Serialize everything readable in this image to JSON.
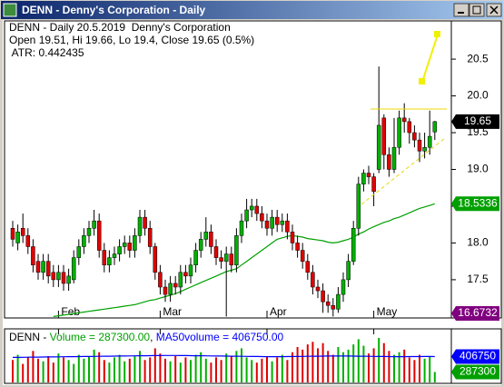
{
  "window_title": "DENN - Denny's Corporation - Daily",
  "chart_data": {
    "type": "candlestick",
    "annotations": [
      "DENN - Daily 20.5.2019  Denny's Corporation",
      "Open 19.51, Hi 19.66, Lo 19.4, Close 19.65 (0.5%)",
      " ATR: 0.442435"
    ],
    "categories": [
      null,
      null,
      null,
      null,
      null,
      null,
      null,
      null,
      null,
      "Feb",
      null,
      null,
      null,
      null,
      null,
      null,
      null,
      null,
      null,
      null,
      null,
      null,
      null,
      null,
      null,
      null,
      null,
      null,
      null,
      "Mar",
      null,
      null,
      null,
      null,
      null,
      null,
      null,
      null,
      null,
      null,
      null,
      null,
      null,
      null,
      null,
      null,
      null,
      null,
      null,
      null,
      "Apr",
      null,
      null,
      null,
      null,
      null,
      null,
      null,
      null,
      null,
      null,
      null,
      null,
      null,
      null,
      null,
      null,
      null,
      null,
      null,
      null,
      "May",
      null,
      null,
      null,
      null,
      null,
      null,
      null,
      null,
      null,
      null,
      null,
      null
    ],
    "open": [
      18.2,
      18.0,
      18.2,
      18.1,
      17.95,
      17.75,
      17.6,
      17.75,
      17.6,
      17.5,
      17.6,
      17.45,
      17.5,
      17.8,
      17.95,
      18.1,
      18.2,
      18.3,
      17.9,
      17.7,
      17.8,
      17.85,
      17.95,
      18.0,
      17.9,
      18.1,
      18.35,
      18.2,
      17.95,
      17.6,
      17.4,
      17.3,
      17.45,
      17.4,
      17.6,
      17.55,
      17.7,
      17.9,
      18.05,
      18.15,
      17.95,
      17.8,
      17.75,
      17.85,
      17.7,
      18.1,
      18.3,
      18.45,
      18.5,
      18.4,
      18.3,
      18.2,
      18.35,
      18.25,
      18.3,
      18.15,
      18.0,
      17.9,
      17.75,
      17.6,
      17.4,
      17.35,
      17.2,
      17.15,
      17.1,
      17.3,
      17.5,
      17.75,
      18.2,
      18.8,
      18.95,
      18.9,
      19.0,
      19.7,
      19.2,
      19.0,
      19.3,
      19.7,
      19.65,
      19.5,
      19.4,
      19.25,
      19.3,
      19.51
    ],
    "high": [
      18.3,
      18.25,
      18.4,
      18.2,
      18.05,
      17.85,
      17.85,
      17.85,
      17.7,
      17.7,
      17.7,
      17.65,
      17.9,
      18.05,
      18.2,
      18.3,
      18.45,
      18.4,
      18.0,
      17.9,
      17.95,
      18.05,
      18.1,
      18.1,
      18.2,
      18.45,
      18.45,
      18.3,
      18.0,
      17.7,
      17.5,
      17.55,
      17.55,
      17.7,
      17.7,
      17.8,
      18.0,
      18.15,
      18.35,
      18.25,
      18.05,
      17.9,
      17.95,
      17.95,
      18.2,
      18.4,
      18.6,
      18.6,
      18.6,
      18.5,
      18.4,
      18.45,
      18.45,
      18.4,
      18.4,
      18.25,
      18.1,
      18.0,
      17.85,
      17.7,
      17.5,
      17.45,
      17.3,
      17.25,
      17.4,
      17.6,
      17.85,
      18.3,
      18.9,
      19.0,
      19.05,
      18.95,
      20.4,
      19.75,
      19.3,
      19.7,
      19.8,
      19.9,
      19.7,
      19.6,
      19.5,
      19.5,
      19.8,
      19.66
    ],
    "low": [
      17.95,
      17.9,
      18.0,
      17.85,
      17.6,
      17.5,
      17.5,
      17.45,
      17.4,
      17.4,
      17.35,
      17.35,
      17.45,
      17.7,
      17.85,
      18.0,
      18.1,
      17.8,
      17.6,
      17.6,
      17.7,
      17.75,
      17.85,
      17.8,
      17.8,
      18.0,
      18.1,
      17.85,
      17.5,
      17.3,
      17.2,
      17.2,
      17.3,
      17.3,
      17.45,
      17.45,
      17.6,
      17.8,
      17.95,
      17.85,
      17.7,
      17.65,
      17.0,
      17.6,
      17.6,
      18.0,
      18.2,
      18.35,
      18.3,
      18.2,
      18.1,
      18.1,
      18.15,
      18.15,
      18.05,
      17.9,
      17.8,
      17.65,
      17.5,
      17.3,
      17.25,
      17.05,
      17.05,
      17.0,
      17.05,
      17.2,
      17.4,
      17.7,
      18.1,
      18.7,
      18.8,
      18.5,
      18.95,
      19.0,
      18.9,
      18.95,
      19.2,
      19.5,
      19.35,
      19.3,
      19.1,
      19.15,
      19.2,
      19.4
    ],
    "close": [
      18.05,
      18.15,
      18.1,
      17.95,
      17.7,
      17.6,
      17.75,
      17.55,
      17.5,
      17.6,
      17.45,
      17.55,
      17.8,
      17.95,
      18.1,
      18.2,
      18.3,
      17.9,
      17.7,
      17.8,
      17.85,
      17.95,
      18.0,
      17.9,
      18.1,
      18.35,
      18.2,
      17.95,
      17.6,
      17.4,
      17.3,
      17.45,
      17.4,
      17.6,
      17.55,
      17.7,
      17.9,
      18.05,
      18.15,
      17.95,
      17.8,
      17.75,
      17.85,
      17.7,
      18.1,
      18.3,
      18.45,
      18.5,
      18.4,
      18.3,
      18.2,
      18.35,
      18.25,
      18.3,
      18.15,
      18.0,
      17.9,
      17.75,
      17.6,
      17.4,
      17.35,
      17.2,
      17.15,
      17.1,
      17.3,
      17.5,
      17.75,
      18.2,
      18.8,
      18.95,
      18.9,
      18.7,
      19.6,
      19.2,
      19.0,
      19.3,
      19.7,
      19.65,
      19.5,
      19.4,
      19.25,
      19.3,
      19.45,
      19.65
    ],
    "up_color": "#00b000",
    "down_color": "#e00000",
    "ma": {
      "color": "#00a000",
      "values": [
        null,
        null,
        null,
        null,
        null,
        null,
        null,
        null,
        17.0,
        17.01,
        17.02,
        17.03,
        17.04,
        17.05,
        17.06,
        17.07,
        17.08,
        17.09,
        17.1,
        17.11,
        17.12,
        17.13,
        17.14,
        17.15,
        17.16,
        17.18,
        17.2,
        17.22,
        17.23,
        17.25,
        17.27,
        17.29,
        17.31,
        17.34,
        17.37,
        17.4,
        17.43,
        17.46,
        17.49,
        17.52,
        17.55,
        17.58,
        17.61,
        17.63,
        17.65,
        17.7,
        17.75,
        17.8,
        17.85,
        17.9,
        17.95,
        18.0,
        18.05,
        18.07,
        18.09,
        18.1,
        18.09,
        18.08,
        18.06,
        18.05,
        18.04,
        18.03,
        18.01,
        18.0,
        18.01,
        18.03,
        18.05,
        18.08,
        18.12,
        18.15,
        18.19,
        18.22,
        18.25,
        18.28,
        18.3,
        18.33,
        18.35,
        18.38,
        18.41,
        18.44,
        18.47,
        18.49,
        18.51,
        18.5336
      ]
    },
    "ylim": [
      16.98,
      21.02
    ],
    "yticks": [
      17.5,
      {
        "value": 18,
        "label": "18.0"
      },
      18.5,
      {
        "value": 19,
        "label": "19.0"
      },
      19.5,
      {
        "value": 20,
        "label": "20.0"
      },
      20.5
    ],
    "price_labels": [
      {
        "value": 19.65,
        "color": "#000000"
      },
      {
        "value": 18.5336,
        "color": "#00a000"
      },
      {
        "value": 16.6732,
        "color": "#800080"
      }
    ],
    "volume_title": [
      "DENN - ",
      "Volume = 287300.00",
      ", ",
      "MA50volume = 406750.00"
    ],
    "volume": [
      380000,
      420000,
      350000,
      400000,
      450000,
      390000,
      370000,
      410000,
      360000,
      430000,
      400000,
      380000,
      350000,
      420000,
      390000,
      410000,
      460000,
      440000,
      380000,
      360000,
      400000,
      420000,
      370000,
      390000,
      410000,
      450000,
      380000,
      400000,
      470000,
      430000,
      390000,
      370000,
      410000,
      360000,
      400000,
      380000,
      420000,
      440000,
      390000,
      360000,
      400000,
      380000,
      430000,
      410000,
      450000,
      470000,
      400000,
      380000,
      360000,
      390000,
      410000,
      370000,
      400000,
      420000,
      380000,
      440000,
      480000,
      460000,
      500000,
      520000,
      470000,
      510000,
      450000,
      420000,
      480000,
      440000,
      460000,
      500000,
      540000,
      490000,
      430000,
      470000,
      550000,
      510000,
      450000,
      420000,
      440000,
      460000,
      400000,
      380000,
      420000,
      390000,
      410000,
      287300
    ],
    "volume_ma": {
      "color": "#0000ff",
      "values": [
        400000,
        400500,
        401000,
        401500,
        402000,
        402500,
        403000,
        403500,
        404000,
        404500,
        405000,
        405500,
        406000,
        406500,
        407000,
        407500,
        408000,
        408500,
        409000,
        409500,
        410000,
        410500,
        411000,
        411500,
        412000,
        412500,
        413000,
        413500,
        414000,
        414500,
        415000,
        415000,
        415000,
        414500,
        414000,
        413500,
        413000,
        412500,
        412000,
        411500,
        411000,
        410500,
        410000,
        409500,
        409000,
        408500,
        408000,
        407500,
        407000,
        406500,
        406000,
        406000,
        406000,
        406000,
        406500,
        407000,
        407500,
        408000,
        408500,
        409000,
        409500,
        410000,
        410500,
        411000,
        411000,
        411000,
        410500,
        410000,
        409500,
        409000,
        408500,
        408000,
        407500,
        407000,
        406500,
        406000,
        406000,
        406000,
        406250,
        406500,
        406750,
        407000,
        407000,
        406750
      ]
    },
    "volume_ylim": [
      200000,
      620000
    ],
    "volume_labels": [
      {
        "value": 406750,
        "color": "#0000ff"
      },
      {
        "value": 287300,
        "color": "#00a000"
      }
    ]
  }
}
